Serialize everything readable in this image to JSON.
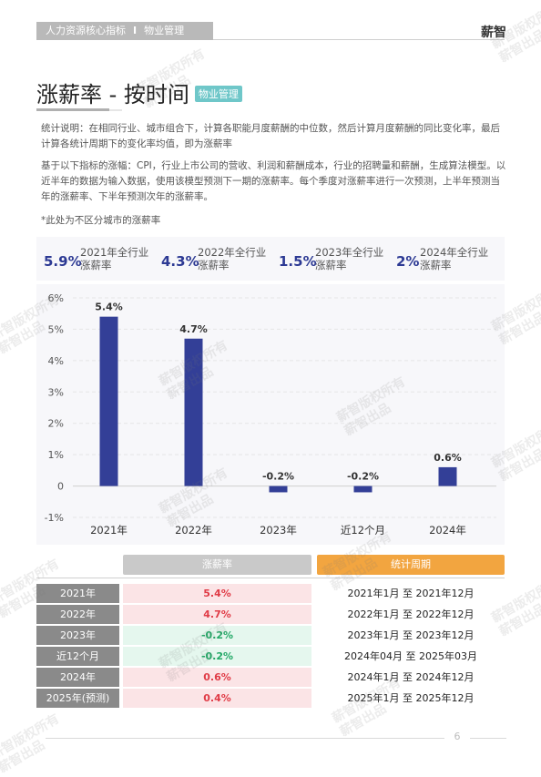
{
  "header": {
    "breadcrumb": [
      "人力资源核心指标",
      "物业管理"
    ],
    "separator": "I",
    "brand": "薪智"
  },
  "page": {
    "title": "涨薪率 - 按时间",
    "tag": "物业管理",
    "description": "统计说明：在相同行业、城市组合下，计算各职能月度薪酬的中位数，然后计算月度薪酬的同比变化率，最后计算各统计周期下的变化率均值，即为涨薪率",
    "method": "基于以下指标的涨幅：CPI，行业上市公司的营收、利润和薪酬成本，行业的招聘量和薪酬，生成算法模型。以近半年的数据为输入数据，使用该模型预测下一期的涨薪率。每个季度对涨薪率进行一次预测，上半年预测当年的涨薪率、下半年预测次年的涨薪率。",
    "note": "*此处为不区分城市的涨薪率",
    "page_number": "6"
  },
  "summary": [
    {
      "value": "5.9%",
      "label_line1": "2021年全行业",
      "label_line2": "涨薪率"
    },
    {
      "value": "4.3%",
      "label_line1": "2022年全行业",
      "label_line2": "涨薪率"
    },
    {
      "value": "1.5%",
      "label_line1": "2023年全行业",
      "label_line2": "涨薪率"
    },
    {
      "value": "2%",
      "label_line1": "2024年全行业",
      "label_line2": "涨薪率"
    }
  ],
  "chart_data": {
    "type": "bar",
    "categories": [
      "2021年",
      "2022年",
      "2023年",
      "近12个月",
      "2024年"
    ],
    "values": [
      5.4,
      4.7,
      -0.2,
      -0.2,
      0.6
    ],
    "data_labels": [
      "5.4%",
      "4.7%",
      "-0.2%",
      "-0.2%",
      "0.6%"
    ],
    "yticks": [
      -1,
      0,
      1,
      2,
      3,
      4,
      5,
      6
    ],
    "ytick_labels": [
      "-1%",
      "0",
      "1%",
      "2%",
      "3%",
      "4%",
      "5%",
      "6%"
    ],
    "ylim": [
      -1,
      6
    ],
    "grid": true,
    "bar_color": "#333f97"
  },
  "table": {
    "headers": {
      "rate": "涨薪率",
      "period": "统计周期"
    },
    "rows": [
      {
        "year": "2021年",
        "rate": "5.4%",
        "sign": "pos",
        "period": "2021年1月 至 2021年12月"
      },
      {
        "year": "2022年",
        "rate": "4.7%",
        "sign": "pos",
        "period": "2022年1月 至 2022年12月"
      },
      {
        "year": "2023年",
        "rate": "-0.2%",
        "sign": "neg",
        "period": "2023年1月 至 2023年12月"
      },
      {
        "year": "近12个月",
        "rate": "-0.2%",
        "sign": "neg",
        "period": "2024年04月 至 2025年03月"
      },
      {
        "year": "2024年",
        "rate": "0.6%",
        "sign": "pos",
        "period": "2024年1月 至 2024年12月"
      },
      {
        "year": "2025年(预测)",
        "rate": "0.4%",
        "sign": "pos",
        "period": "2025年1月 至 2025年12月"
      }
    ]
  },
  "watermark": {
    "line1": "薪智版权所有",
    "line2": "薪智出品"
  },
  "colors": {
    "accent": "#333f97",
    "positive": "#e03b46",
    "negative": "#22a866",
    "period_header": "#f2a540",
    "tag": "#6fc7c9"
  }
}
